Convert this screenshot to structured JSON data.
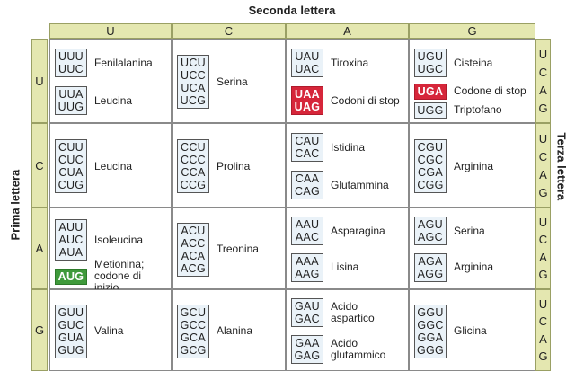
{
  "axis_titles": {
    "second": "Seconda lettera",
    "first": "Prima lettera",
    "third": "Terza lettera"
  },
  "col_headers": [
    "U",
    "C",
    "A",
    "G"
  ],
  "row_headers": [
    "U",
    "C",
    "A",
    "G"
  ],
  "third_letters": [
    "U",
    "C",
    "A",
    "G"
  ],
  "colors": {
    "header_bg": "#e4e7b0",
    "codon_bg": "#eaf2f8",
    "stop_bg": "#d6263a",
    "start_bg": "#3f9a3b"
  },
  "rows": [
    {
      "cells": [
        {
          "groups": [
            {
              "codons": [
                "UUU",
                "UUC"
              ],
              "aa": "Fenilalanina"
            },
            {
              "codons": [
                "UUA",
                "UUG"
              ],
              "aa": "Leucina"
            }
          ]
        },
        {
          "groups": [
            {
              "codons": [
                "UCU",
                "UCC",
                "UCA",
                "UCG"
              ],
              "aa": "Serina"
            }
          ]
        },
        {
          "groups": [
            {
              "codons": [
                "UAU",
                "UAC"
              ],
              "aa": "Tiroxina"
            },
            {
              "codons": [
                "UAA",
                "UAG"
              ],
              "aa": "Codoni di stop",
              "style": "stop"
            }
          ]
        },
        {
          "groups": [
            {
              "codons": [
                "UGU",
                "UGC"
              ],
              "aa": "Cisteina"
            },
            {
              "codons": [
                "UGA"
              ],
              "aa": "Codone di stop",
              "style": "stop"
            },
            {
              "codons": [
                "UGG"
              ],
              "aa": "Triptofano"
            }
          ]
        }
      ]
    },
    {
      "cells": [
        {
          "groups": [
            {
              "codons": [
                "CUU",
                "CUC",
                "CUA",
                "CUG"
              ],
              "aa": "Leucina"
            }
          ]
        },
        {
          "groups": [
            {
              "codons": [
                "CCU",
                "CCC",
                "CCA",
                "CCG"
              ],
              "aa": "Prolina"
            }
          ]
        },
        {
          "groups": [
            {
              "codons": [
                "CAU",
                "CAC"
              ],
              "aa": "Istidina"
            },
            {
              "codons": [
                "CAA",
                "CAG"
              ],
              "aa": "Glutammina"
            }
          ]
        },
        {
          "groups": [
            {
              "codons": [
                "CGU",
                "CGC",
                "CGA",
                "CGG"
              ],
              "aa": "Arginina"
            }
          ]
        }
      ]
    },
    {
      "cells": [
        {
          "groups": [
            {
              "codons": [
                "AUU",
                "AUC",
                "AUA"
              ],
              "aa": "Isoleucina"
            },
            {
              "codons": [
                "AUG"
              ],
              "aa": "Metionina; codone di inizio",
              "style": "start"
            }
          ]
        },
        {
          "groups": [
            {
              "codons": [
                "ACU",
                "ACC",
                "ACA",
                "ACG"
              ],
              "aa": "Treonina"
            }
          ]
        },
        {
          "groups": [
            {
              "codons": [
                "AAU",
                "AAC"
              ],
              "aa": "Asparagina"
            },
            {
              "codons": [
                "AAA",
                "AAG"
              ],
              "aa": "Lisina"
            }
          ]
        },
        {
          "groups": [
            {
              "codons": [
                "AGU",
                "AGC"
              ],
              "aa": "Serina"
            },
            {
              "codons": [
                "AGA",
                "AGG"
              ],
              "aa": "Arginina"
            }
          ]
        }
      ]
    },
    {
      "cells": [
        {
          "groups": [
            {
              "codons": [
                "GUU",
                "GUC",
                "GUA",
                "GUG"
              ],
              "aa": "Valina"
            }
          ]
        },
        {
          "groups": [
            {
              "codons": [
                "GCU",
                "GCC",
                "GCA",
                "GCG"
              ],
              "aa": "Alanina"
            }
          ]
        },
        {
          "groups": [
            {
              "codons": [
                "GAU",
                "GAC"
              ],
              "aa": "Acido aspartico"
            },
            {
              "codons": [
                "GAA",
                "GAG"
              ],
              "aa": "Acido glutammico"
            }
          ]
        },
        {
          "groups": [
            {
              "codons": [
                "GGU",
                "GGC",
                "GGA",
                "GGG"
              ],
              "aa": "Glicina"
            }
          ]
        }
      ]
    }
  ]
}
